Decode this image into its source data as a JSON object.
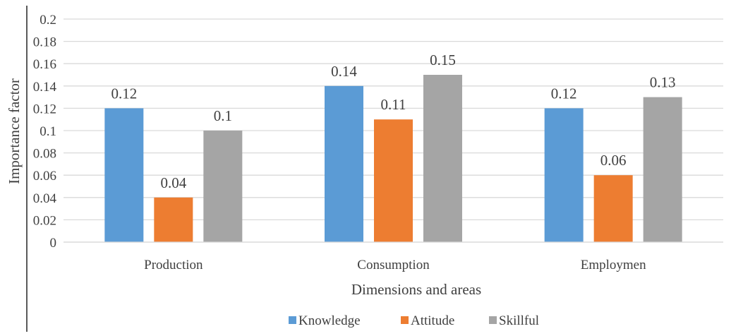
{
  "chart_data": {
    "type": "bar",
    "categories": [
      "Production",
      "Consumption",
      "Employmen"
    ],
    "series": [
      {
        "name": "Knowledge",
        "values": [
          0.12,
          0.14,
          0.12
        ],
        "color": "#5B9BD5"
      },
      {
        "name": "Attitude",
        "values": [
          0.04,
          0.11,
          0.06
        ],
        "color": "#ED7D31"
      },
      {
        "name": "Skillful",
        "values": [
          0.1,
          0.15,
          0.13
        ],
        "color": "#A5A5A5"
      }
    ],
    "data_labels": [
      [
        "0.12",
        "0.04",
        "0.1"
      ],
      [
        "0.14",
        "0.11",
        "0.15"
      ],
      [
        "0.12",
        "0.06",
        "0.13"
      ]
    ],
    "yticks": [
      "0",
      "0.02",
      "0.04",
      "0.06",
      "0.08",
      "0.1",
      "0.12",
      "0.14",
      "0.16",
      "0.18",
      "0.2"
    ],
    "ylim": [
      0,
      0.2
    ],
    "xlabel": "Dimensions and areas",
    "ylabel": "Importance factor",
    "grid": true,
    "legend_position": "bottom",
    "gridline_color": "#D9D9D9",
    "axis_line_color": "#000000"
  }
}
